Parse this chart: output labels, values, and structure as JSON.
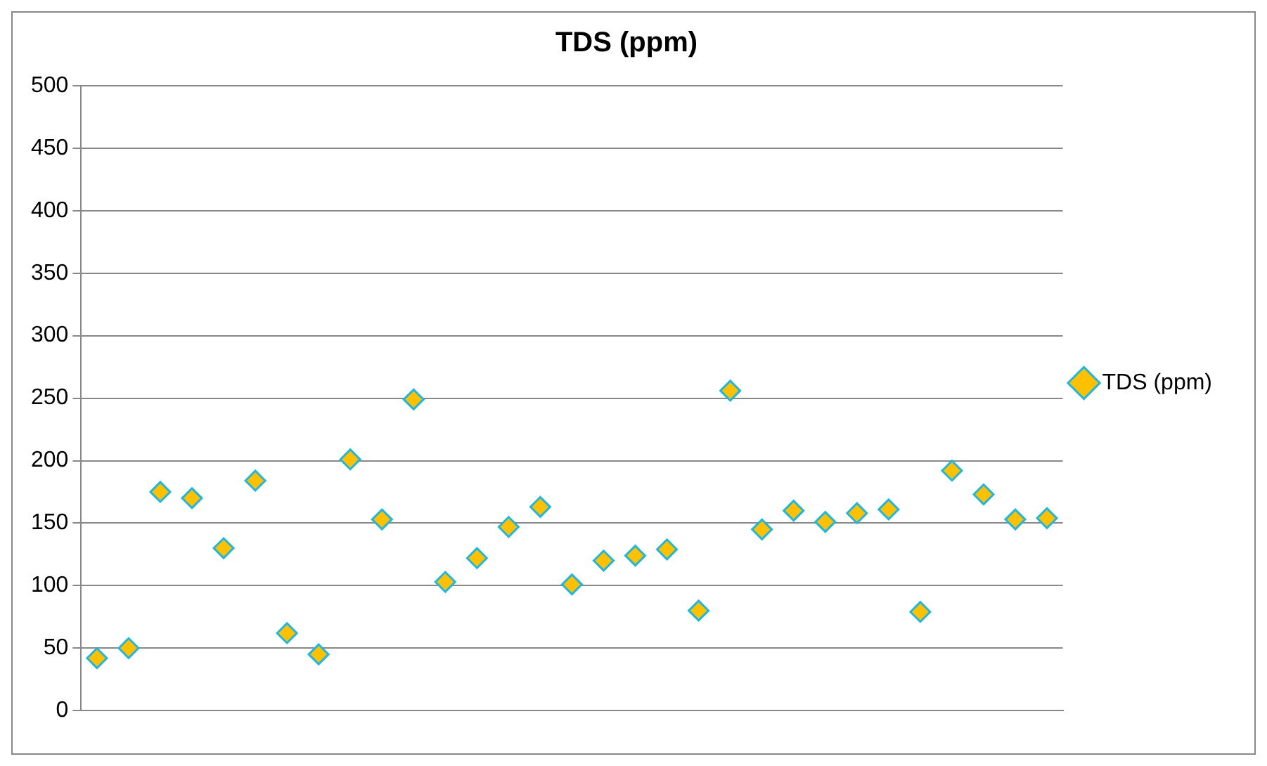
{
  "chart_data": {
    "type": "scatter",
    "title": "TDS (ppm)",
    "categories": [
      null,
      null,
      null,
      null,
      null,
      null,
      null,
      null,
      null,
      null,
      null,
      null,
      null,
      null,
      null,
      null,
      null,
      null,
      null,
      null,
      null,
      null,
      null,
      null,
      null,
      null,
      null,
      null,
      null,
      null,
      null
    ],
    "series": [
      {
        "name": "TDS (ppm)",
        "color": "#ffc000",
        "values": [
          42,
          50,
          175,
          170,
          130,
          184,
          62,
          45,
          201,
          153,
          249,
          103,
          122,
          147,
          163,
          101,
          120,
          124,
          129,
          80,
          256,
          145,
          160,
          151,
          158,
          161,
          79,
          192,
          173,
          153,
          154
        ]
      }
    ],
    "ylim": [
      0,
      500
    ],
    "yticks": [
      0,
      50,
      100,
      150,
      200,
      250,
      300,
      350,
      400,
      450,
      500
    ],
    "grid": "y",
    "legend": "right",
    "marker": "diamond"
  }
}
